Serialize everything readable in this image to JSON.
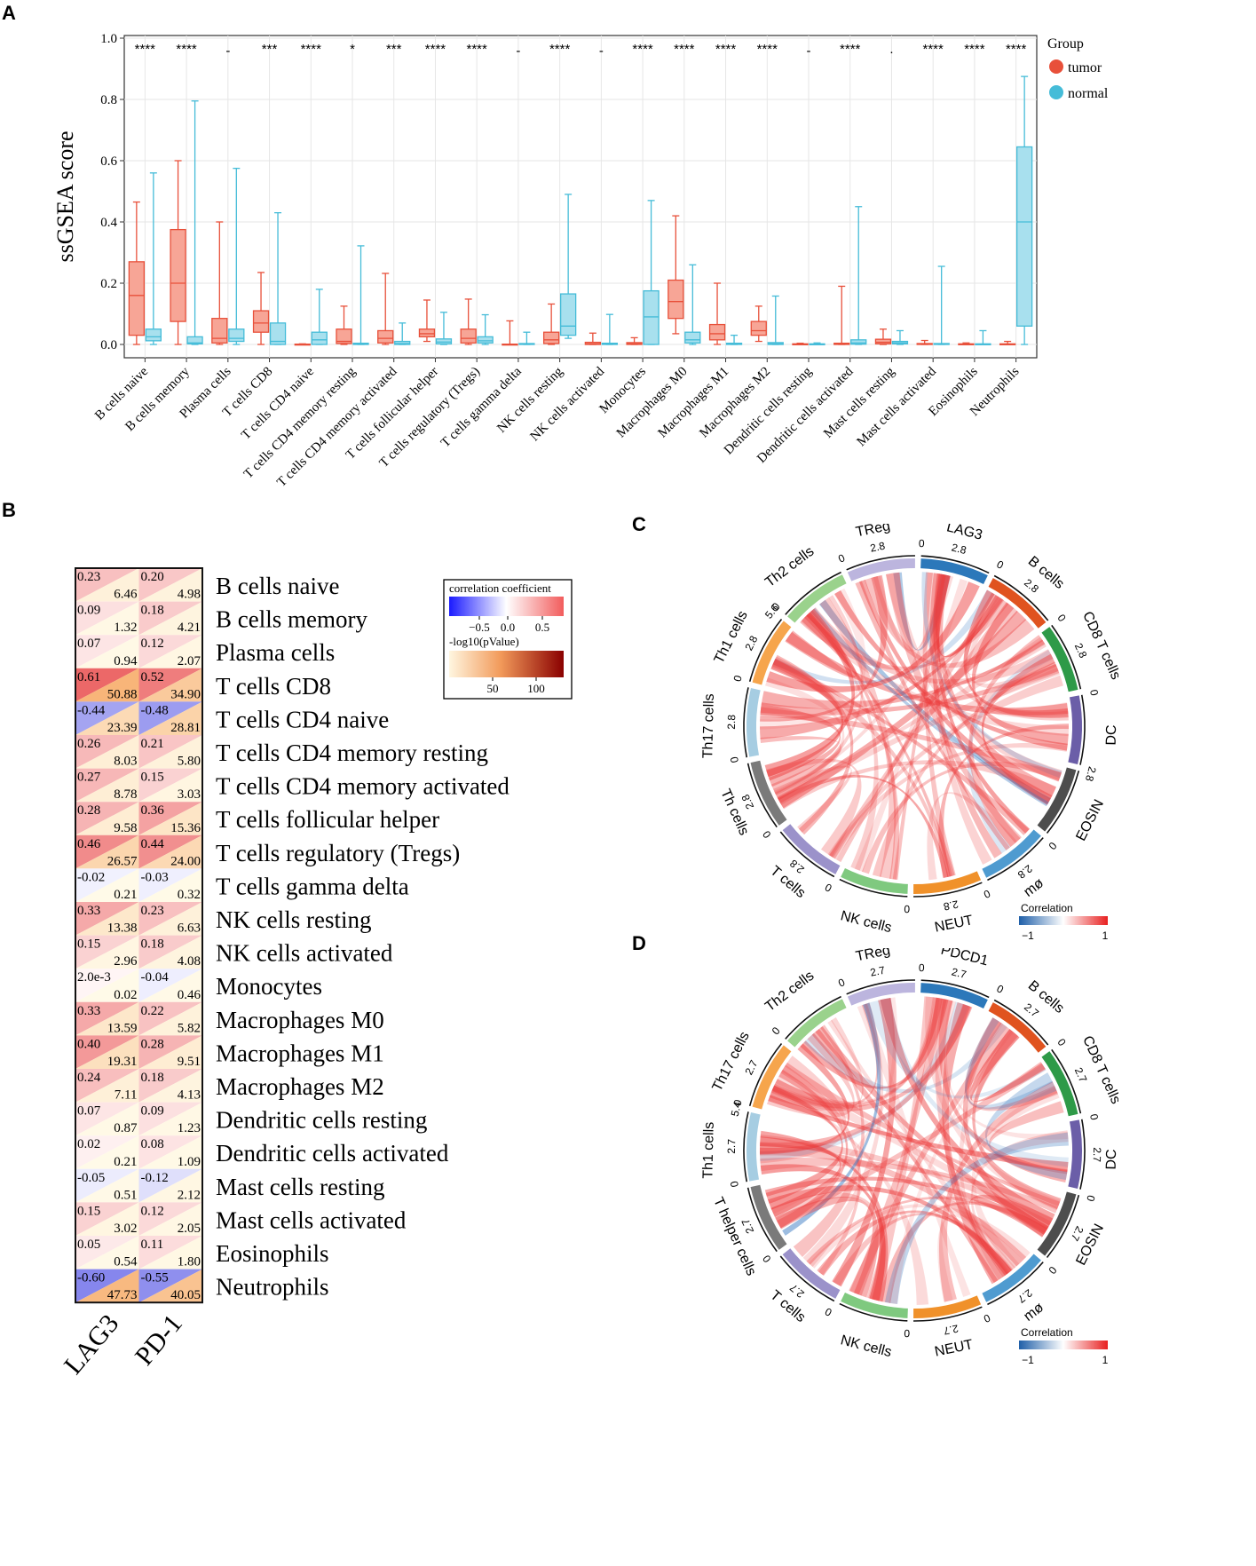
{
  "panels": {
    "a": "A",
    "b": "B",
    "c": "C",
    "d": "D"
  },
  "chart_data": [
    {
      "type": "box",
      "panel": "A",
      "ylabel": "ssGSEA score",
      "xlabel": "",
      "ylim": [
        0,
        1.0
      ],
      "yticks": [
        0.0,
        0.2,
        0.4,
        0.6,
        0.8,
        1.0
      ],
      "ytick_labels": [
        "0.0",
        "0.2",
        "0.4",
        "0.6",
        "0.8",
        "1.0"
      ],
      "legend": {
        "title": "Group",
        "items": [
          {
            "name": "tumor",
            "color": "#e8503a"
          },
          {
            "name": "normal",
            "color": "#45bcd8"
          }
        ]
      },
      "categories": [
        "B cells naive",
        "B cells memory",
        "Plasma cells",
        "T cells CD8",
        "T cells CD4 naive",
        "T cells CD4 memory resting",
        "T cells CD4 memory activated",
        "T cells follicular helper",
        "T cells regulatory (Tregs)",
        "T cells gamma delta",
        "NK cells resting",
        "NK cells activated",
        "Monocytes",
        "Macrophages M0",
        "Macrophages M1",
        "Macrophages M2",
        "Dendritic cells resting",
        "Dendritic cells activated",
        "Mast cells resting",
        "Mast cells activated",
        "Eosinophils",
        "Neutrophils"
      ],
      "significance": [
        "****",
        "****",
        "-",
        "***",
        "****",
        "*",
        "***",
        "****",
        "****",
        "-",
        "****",
        "-",
        "****",
        "****",
        "****",
        "****",
        "-",
        "****",
        ".",
        "****",
        "****",
        "****"
      ],
      "series": [
        {
          "name": "tumor",
          "color": "#e8503a",
          "fill": "#f7a596",
          "boxes": [
            [
              0,
              0.03,
              0.16,
              0.27,
              0.465
            ],
            [
              0,
              0.075,
              0.2,
              0.375,
              0.6
            ],
            [
              0,
              0.005,
              0.02,
              0.085,
              0.4
            ],
            [
              0,
              0.04,
              0.07,
              0.11,
              0.235
            ],
            [
              0,
              0,
              0,
              0.001,
              0.002
            ],
            [
              0,
              0.003,
              0.01,
              0.05,
              0.125
            ],
            [
              0,
              0.005,
              0.02,
              0.045,
              0.232
            ],
            [
              0.01,
              0.025,
              0.035,
              0.05,
              0.145
            ],
            [
              0,
              0.005,
              0.02,
              0.05,
              0.148
            ],
            [
              0,
              0,
              0,
              0.001,
              0.077
            ],
            [
              0,
              0.003,
              0.015,
              0.04,
              0.132
            ],
            [
              0,
              0,
              0.002,
              0.007,
              0.037
            ],
            [
              0,
              0,
              0.002,
              0.006,
              0.022
            ],
            [
              0.035,
              0.085,
              0.14,
              0.21,
              0.42
            ],
            [
              0,
              0.015,
              0.035,
              0.065,
              0.2
            ],
            [
              0.01,
              0.03,
              0.045,
              0.075,
              0.125
            ],
            [
              0,
              0,
              0.001,
              0.002,
              0.004
            ],
            [
              0,
              0,
              0.002,
              0.004,
              0.19
            ],
            [
              0,
              0.002,
              0.007,
              0.017,
              0.05
            ],
            [
              0,
              0,
              0.001,
              0.003,
              0.013
            ],
            [
              0,
              0,
              0.001,
              0.002,
              0.005
            ],
            [
              0,
              0,
              0.001,
              0.002,
              0.01
            ]
          ]
        },
        {
          "name": "normal",
          "color": "#45bcd8",
          "fill": "#a8e0ee",
          "boxes": [
            [
              0,
              0.012,
              0.025,
              0.05,
              0.56
            ],
            [
              0,
              0.002,
              0.005,
              0.025,
              0.795
            ],
            [
              0,
              0.01,
              0.02,
              0.05,
              0.575
            ],
            [
              0,
              0,
              0.01,
              0.07,
              0.43
            ],
            [
              0,
              0,
              0.015,
              0.04,
              0.18
            ],
            [
              0,
              0,
              0.001,
              0.004,
              0.322
            ],
            [
              0,
              0,
              0.003,
              0.01,
              0.07
            ],
            [
              0,
              0.002,
              0.008,
              0.018,
              0.105
            ],
            [
              0,
              0.005,
              0.012,
              0.025,
              0.097
            ],
            [
              0,
              0,
              0.001,
              0.003,
              0.04
            ],
            [
              0.02,
              0.03,
              0.06,
              0.165,
              0.49
            ],
            [
              0,
              0,
              0.002,
              0.004,
              0.098
            ],
            [
              0,
              0,
              0.09,
              0.175,
              0.47
            ],
            [
              0,
              0.005,
              0.015,
              0.04,
              0.26
            ],
            [
              0,
              0,
              0.001,
              0.004,
              0.03
            ],
            [
              0,
              0,
              0.002,
              0.006,
              0.158
            ],
            [
              0,
              0,
              0.001,
              0.002,
              0.005
            ],
            [
              0,
              0.001,
              0.005,
              0.015,
              0.45
            ],
            [
              0,
              0.002,
              0.005,
              0.01,
              0.045
            ],
            [
              0,
              0,
              0.001,
              0.003,
              0.255
            ],
            [
              0,
              0,
              0.001,
              0.002,
              0.045
            ],
            [
              0,
              0.06,
              0.4,
              0.645,
              0.875
            ]
          ]
        }
      ]
    },
    {
      "type": "heatmap",
      "panel": "B",
      "columns": [
        "LAG3",
        "PD-1"
      ],
      "rows": [
        "B cells naive",
        "B cells memory",
        "Plasma cells",
        "T cells CD8",
        "T cells CD4 naive",
        "T cells CD4 memory resting",
        "T cells CD4 memory activated",
        "T cells follicular helper",
        "T cells regulatory (Tregs)",
        "T cells gamma delta",
        "NK cells resting",
        "NK cells activated",
        "Monocytes",
        "Macrophages M0",
        "Macrophages M1",
        "Macrophages M2",
        "Dendritic cells resting",
        "Dendritic cells activated",
        "Mast cells resting",
        "Mast cells activated",
        "Eosinophils",
        "Neutrophils"
      ],
      "cells": [
        [
          [
            "0.23",
            "6.46"
          ],
          [
            "0.20",
            "4.98"
          ]
        ],
        [
          [
            "0.09",
            "1.32"
          ],
          [
            "0.18",
            "4.21"
          ]
        ],
        [
          [
            "0.07",
            "0.94"
          ],
          [
            "0.12",
            "2.07"
          ]
        ],
        [
          [
            "0.61",
            "50.88"
          ],
          [
            "0.52",
            "34.90"
          ]
        ],
        [
          [
            "-0.44",
            "23.39"
          ],
          [
            "-0.48",
            "28.81"
          ]
        ],
        [
          [
            "0.26",
            "8.03"
          ],
          [
            "0.21",
            "5.80"
          ]
        ],
        [
          [
            "0.27",
            "8.78"
          ],
          [
            "0.15",
            "3.03"
          ]
        ],
        [
          [
            "0.28",
            "9.58"
          ],
          [
            "0.36",
            "15.36"
          ]
        ],
        [
          [
            "0.46",
            "26.57"
          ],
          [
            "0.44",
            "24.00"
          ]
        ],
        [
          [
            "-0.02",
            "0.21"
          ],
          [
            "-0.03",
            "0.32"
          ]
        ],
        [
          [
            "0.33",
            "13.38"
          ],
          [
            "0.23",
            "6.63"
          ]
        ],
        [
          [
            "0.15",
            "2.96"
          ],
          [
            "0.18",
            "4.08"
          ]
        ],
        [
          [
            "2.0e-3",
            "0.02"
          ],
          [
            "-0.04",
            "0.46"
          ]
        ],
        [
          [
            "0.33",
            "13.59"
          ],
          [
            "0.22",
            "5.82"
          ]
        ],
        [
          [
            "0.40",
            "19.31"
          ],
          [
            "0.28",
            "9.51"
          ]
        ],
        [
          [
            "0.24",
            "7.11"
          ],
          [
            "0.18",
            "4.13"
          ]
        ],
        [
          [
            "0.07",
            "0.87"
          ],
          [
            "0.09",
            "1.23"
          ]
        ],
        [
          [
            "0.02",
            "0.21"
          ],
          [
            "0.08",
            "1.09"
          ]
        ],
        [
          [
            "-0.05",
            "0.51"
          ],
          [
            "-0.12",
            "2.12"
          ]
        ],
        [
          [
            "0.15",
            "3.02"
          ],
          [
            "0.12",
            "2.05"
          ]
        ],
        [
          [
            "0.05",
            "0.54"
          ],
          [
            "0.11",
            "1.80"
          ]
        ],
        [
          [
            "-0.60",
            "47.73"
          ],
          [
            "-0.55",
            "40.05"
          ]
        ]
      ],
      "legend": {
        "corr_title": "correlation coefficient",
        "corr_ticks": [
          "−0.5",
          "0.0",
          "0.5"
        ],
        "p_title": "-log10(pValue)",
        "p_ticks": [
          "50",
          "100"
        ]
      }
    },
    {
      "type": "chord",
      "panel": "C",
      "segments": [
        {
          "name": "LAG3",
          "color": "#2c78ba",
          "ticks": [
            "0",
            "2.8"
          ]
        },
        {
          "name": "B cells",
          "color": "#e0531f",
          "ticks": [
            "0",
            "2.8"
          ]
        },
        {
          "name": "CD8 T cells",
          "color": "#2e9a48",
          "ticks": [
            "0",
            "2.8"
          ]
        },
        {
          "name": "DC",
          "color": "#6b5ea8",
          "ticks": [
            "0"
          ]
        },
        {
          "name": "EOSIN",
          "color": "#4d4d4d",
          "ticks": [
            "2.8"
          ]
        },
        {
          "name": "mø",
          "color": "#4f9bd0",
          "ticks": [
            "0",
            "2.8"
          ]
        },
        {
          "name": "NEUT",
          "color": "#f0912a",
          "ticks": [
            "0",
            "2.8"
          ]
        },
        {
          "name": "NK cells",
          "color": "#7fc97f",
          "ticks": [
            "0"
          ]
        },
        {
          "name": "T cells",
          "color": "#9b92ca",
          "ticks": [
            "0",
            "2.8"
          ]
        },
        {
          "name": "Th cells",
          "color": "#7a7a7a",
          "ticks": [
            "0",
            "2.8"
          ]
        },
        {
          "name": "Th17 cells",
          "color": "#a6cde2",
          "ticks": [
            "0",
            "2.8"
          ]
        },
        {
          "name": "Th1 cells",
          "color": "#f6a54c",
          "ticks": [
            "0",
            "2.8",
            "5.6"
          ]
        },
        {
          "name": "Th2 cells",
          "color": "#9ad28c",
          "ticks": [
            "0"
          ]
        },
        {
          "name": "TReg",
          "color": "#bcb5de",
          "ticks": [
            "0",
            "2.8"
          ]
        }
      ],
      "legend": {
        "title": "Correlation",
        "min": "−1",
        "max": "1"
      }
    },
    {
      "type": "chord",
      "panel": "D",
      "segments": [
        {
          "name": "PDCD1",
          "color": "#2c78ba",
          "ticks": [
            "0",
            "2.7"
          ]
        },
        {
          "name": "B cells",
          "color": "#e0531f",
          "ticks": [
            "0",
            "2.7"
          ]
        },
        {
          "name": "CD8 T cells",
          "color": "#2e9a48",
          "ticks": [
            "0",
            "2.7"
          ]
        },
        {
          "name": "DC",
          "color": "#6b5ea8",
          "ticks": [
            "0",
            "2.7"
          ]
        },
        {
          "name": "EOSIN",
          "color": "#4d4d4d",
          "ticks": [
            "0",
            "2.7"
          ]
        },
        {
          "name": "mø",
          "color": "#4f9bd0",
          "ticks": [
            "0",
            "2.7"
          ]
        },
        {
          "name": "NEUT",
          "color": "#f0912a",
          "ticks": [
            "0",
            "2.7"
          ]
        },
        {
          "name": "NK cells",
          "color": "#7fc97f",
          "ticks": [
            "0"
          ]
        },
        {
          "name": "T cells",
          "color": "#9b92ca",
          "ticks": [
            "0",
            "2.7"
          ]
        },
        {
          "name": "T helper cells",
          "color": "#7a7a7a",
          "ticks": [
            "0",
            "2.7"
          ]
        },
        {
          "name": "Th1 cells",
          "color": "#a6cde2",
          "ticks": [
            "0",
            "2.7",
            "5.4"
          ]
        },
        {
          "name": "Th17 cells",
          "color": "#f6a54c",
          "ticks": [
            "0",
            "2.7"
          ]
        },
        {
          "name": "Th2 cells",
          "color": "#9ad28c",
          "ticks": [
            "0"
          ]
        },
        {
          "name": "TReg",
          "color": "#bcb5de",
          "ticks": [
            "0",
            "2.7"
          ]
        }
      ],
      "legend": {
        "title": "Correlation",
        "min": "−1",
        "max": "1"
      }
    }
  ]
}
